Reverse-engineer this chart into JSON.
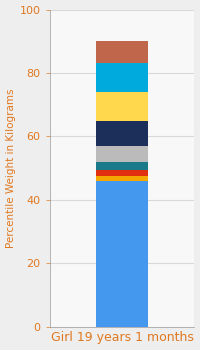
{
  "category": "Girl 19 years 1 months",
  "segments": [
    {
      "value": 46.0,
      "color": "#4499EE"
    },
    {
      "value": 1.5,
      "color": "#F5A800"
    },
    {
      "value": 2.0,
      "color": "#E03010"
    },
    {
      "value": 2.5,
      "color": "#1A7A8A"
    },
    {
      "value": 5.0,
      "color": "#BBBBBB"
    },
    {
      "value": 8.0,
      "color": "#1C2F5A"
    },
    {
      "value": 9.0,
      "color": "#FFD84D"
    },
    {
      "value": 9.0,
      "color": "#00AADD"
    },
    {
      "value": 7.0,
      "color": "#C0664A"
    }
  ],
  "ylim": [
    0,
    100
  ],
  "yticks": [
    0,
    20,
    40,
    60,
    80,
    100
  ],
  "ylabel": "Percentile Weight in Kilograms",
  "xlabel": "Girl 19 years 1 months",
  "background_color": "#EEEEEE",
  "plot_background": "#F8F8F8",
  "label_fontsize": 7.5,
  "tick_fontsize": 8,
  "xlabel_fontsize": 9,
  "xlabel_color": "#E07820",
  "ylabel_color": "#E07820",
  "tick_color": "#E07820",
  "grid_color": "#D8D8D8",
  "bar_width": 0.5
}
